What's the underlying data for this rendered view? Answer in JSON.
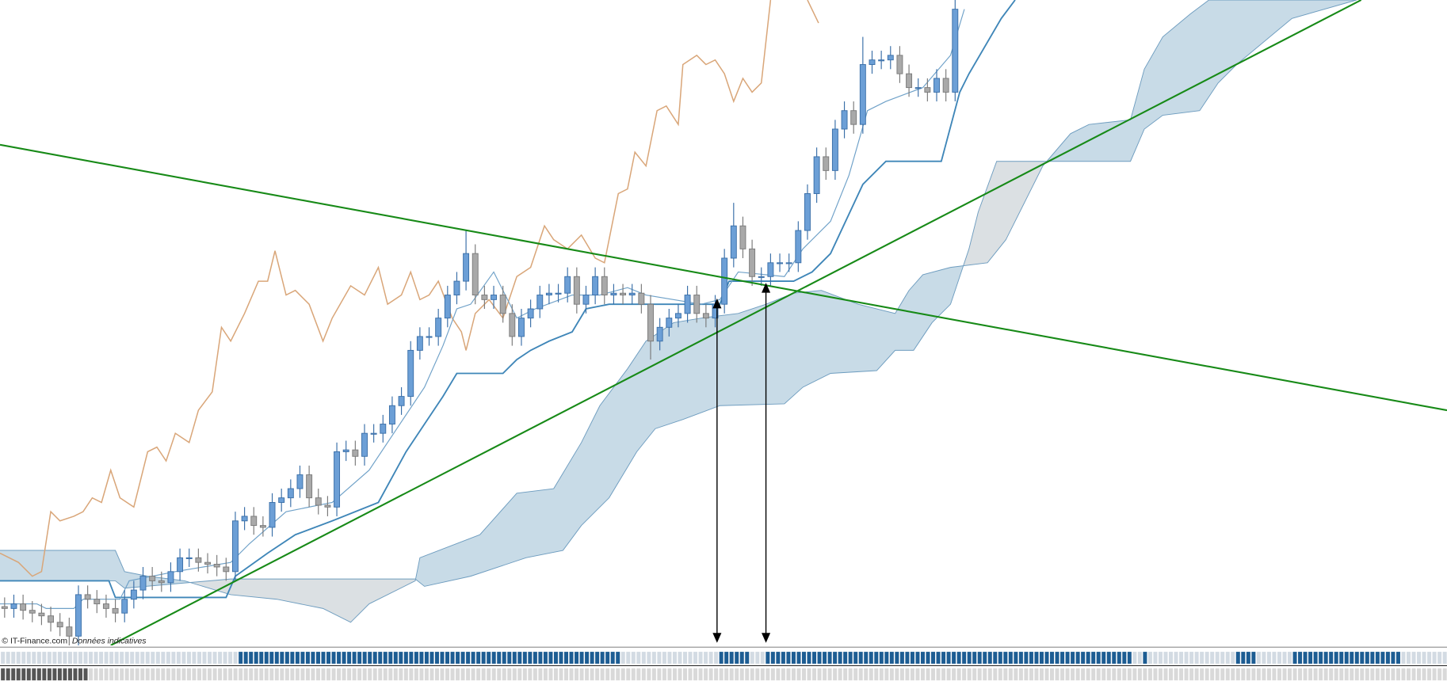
{
  "chart_data": {
    "type": "candlestick",
    "xlim": [
      0,
      1568
    ],
    "ylim": [
      0,
      700
    ],
    "up_color": "#6c9fd6",
    "up_edge": "#3a6fa8",
    "down_color": "#a9a9a9",
    "down_edge": "#7a7a7a",
    "x": [
      5,
      15,
      25,
      35,
      45,
      55,
      65,
      75,
      85,
      95,
      105,
      115,
      125,
      135,
      145,
      155,
      165,
      175,
      185,
      195,
      205,
      215,
      225,
      235,
      245,
      255,
      265,
      275,
      285,
      295,
      305,
      315,
      325,
      335,
      345,
      355,
      365,
      375,
      385,
      395,
      405,
      415,
      425,
      435,
      445,
      455,
      465,
      475,
      485,
      495,
      505,
      515,
      525,
      535,
      545,
      555,
      565,
      575,
      585,
      595,
      605,
      615,
      625,
      635,
      645,
      655,
      665,
      675,
      685,
      695,
      705,
      715,
      725,
      735,
      745,
      755,
      765,
      775,
      785,
      795,
      805,
      815,
      825,
      835,
      845,
      855,
      865,
      875,
      885,
      895,
      905,
      915,
      925,
      935,
      945,
      955,
      965,
      975,
      985,
      995,
      1005,
      1015,
      1025,
      1035
    ],
    "open": [
      42,
      40,
      45,
      38,
      35,
      32,
      25,
      20,
      10,
      55,
      50,
      45,
      40,
      35,
      50,
      60,
      75,
      70,
      68,
      80,
      95,
      95,
      90,
      88,
      85,
      80,
      135,
      140,
      130,
      128,
      155,
      160,
      170,
      185,
      160,
      152,
      150,
      210,
      212,
      205,
      230,
      230,
      240,
      260,
      270,
      320,
      335,
      335,
      355,
      380,
      395,
      425,
      380,
      375,
      380,
      360,
      335,
      355,
      365,
      380,
      382,
      382,
      400,
      370,
      380,
      400,
      380,
      382,
      380,
      382,
      370,
      330,
      345,
      355,
      360,
      380,
      360,
      355,
      370,
      420,
      455,
      430,
      400,
      400,
      415,
      415,
      415,
      450,
      490,
      530,
      515,
      560,
      580,
      565,
      630,
      635,
      635,
      640,
      620,
      605,
      605,
      600,
      615,
      600
    ],
    "high": [
      52,
      55,
      55,
      48,
      45,
      42,
      35,
      30,
      65,
      65,
      60,
      55,
      50,
      60,
      70,
      85,
      85,
      80,
      90,
      105,
      105,
      105,
      100,
      98,
      95,
      145,
      150,
      150,
      140,
      165,
      170,
      180,
      195,
      195,
      170,
      162,
      220,
      222,
      222,
      240,
      240,
      250,
      270,
      280,
      330,
      345,
      345,
      365,
      390,
      405,
      450,
      435,
      390,
      390,
      390,
      370,
      365,
      375,
      390,
      392,
      392,
      410,
      410,
      390,
      410,
      410,
      392,
      392,
      392,
      392,
      380,
      355,
      365,
      370,
      390,
      390,
      370,
      380,
      430,
      480,
      465,
      440,
      410,
      425,
      425,
      425,
      460,
      500,
      540,
      540,
      570,
      590,
      590,
      660,
      645,
      645,
      650,
      650,
      630,
      615,
      615,
      625,
      625,
      720
    ],
    "low": [
      30,
      30,
      28,
      25,
      22,
      15,
      10,
      0,
      0,
      40,
      35,
      30,
      25,
      25,
      40,
      50,
      60,
      58,
      58,
      70,
      85,
      80,
      78,
      75,
      70,
      70,
      125,
      120,
      118,
      118,
      145,
      150,
      160,
      150,
      142,
      140,
      140,
      200,
      195,
      195,
      220,
      220,
      230,
      250,
      260,
      310,
      325,
      325,
      345,
      370,
      385,
      370,
      365,
      365,
      350,
      325,
      325,
      345,
      355,
      370,
      372,
      372,
      360,
      360,
      370,
      370,
      370,
      370,
      370,
      360,
      310,
      320,
      335,
      345,
      350,
      350,
      345,
      345,
      360,
      410,
      420,
      390,
      390,
      390,
      405,
      405,
      405,
      440,
      480,
      505,
      505,
      550,
      555,
      555,
      620,
      625,
      625,
      610,
      595,
      595,
      590,
      590,
      590,
      590
    ],
    "close": [
      40,
      45,
      38,
      35,
      32,
      25,
      20,
      10,
      55,
      50,
      45,
      40,
      35,
      50,
      60,
      75,
      70,
      68,
      80,
      95,
      95,
      90,
      88,
      85,
      80,
      135,
      140,
      130,
      128,
      155,
      160,
      170,
      185,
      160,
      152,
      150,
      210,
      212,
      205,
      230,
      230,
      240,
      260,
      270,
      320,
      335,
      335,
      355,
      380,
      395,
      425,
      380,
      375,
      380,
      360,
      335,
      355,
      365,
      380,
      382,
      382,
      400,
      370,
      380,
      400,
      380,
      382,
      380,
      382,
      370,
      330,
      345,
      355,
      360,
      380,
      360,
      355,
      370,
      420,
      455,
      430,
      400,
      400,
      415,
      415,
      415,
      450,
      490,
      530,
      515,
      560,
      580,
      565,
      630,
      635,
      635,
      640,
      620,
      605,
      605,
      600,
      615,
      600,
      690
    ],
    "lines": [
      {
        "color": "#d9a679",
        "width": 1.3,
        "x": [
          0,
          20,
          35,
          45,
          55,
          65,
          80,
          90,
          100,
          110,
          120,
          130,
          145,
          160,
          170,
          180,
          190,
          205,
          215,
          230,
          240,
          250,
          265,
          280,
          290,
          298,
          310,
          320,
          335,
          350,
          360,
          380,
          395,
          410,
          420,
          435,
          445,
          455,
          465,
          475,
          490,
          500,
          505,
          515,
          530,
          545,
          560,
          575,
          590,
          600,
          615,
          630,
          645,
          655,
          670,
          680,
          688,
          700,
          712,
          722,
          735,
          740,
          755,
          765,
          775,
          785,
          795,
          805,
          815,
          825,
          835,
          855,
          875,
          887
        ],
        "values": [
          100,
          90,
          75,
          80,
          145,
          135,
          140,
          145,
          160,
          155,
          190,
          160,
          150,
          210,
          215,
          200,
          230,
          220,
          255,
          275,
          345,
          330,
          360,
          395,
          395,
          428,
          380,
          385,
          370,
          330,
          355,
          390,
          380,
          410,
          370,
          380,
          405,
          375,
          380,
          395,
          355,
          340,
          320,
          360,
          375,
          355,
          400,
          410,
          455,
          440,
          430,
          445,
          420,
          415,
          490,
          495,
          535,
          520,
          580,
          585,
          565,
          630,
          640,
          630,
          635,
          620,
          590,
          615,
          600,
          610,
          700,
          null,
          700,
          675
        ]
      },
      {
        "color": "#3f86b8",
        "width": 1.6,
        "x": [
          0,
          118,
          125,
          245,
          255,
          290,
          320,
          360,
          410,
          440,
          460,
          480,
          495,
          545,
          560,
          575,
          595,
          620,
          635,
          660,
          780,
          790,
          860,
          880,
          900,
          935,
          960,
          1020,
          1040,
          1050,
          1085,
          1100
        ],
        "values": [
          70,
          70,
          52,
          52,
          75,
          100,
          120,
          135,
          155,
          210,
          240,
          270,
          295,
          295,
          310,
          320,
          330,
          340,
          365,
          370,
          370,
          395,
          395,
          405,
          425,
          500,
          525,
          525,
          600,
          620,
          680,
          700
        ]
      },
      {
        "color": "#6fa1c8",
        "width": 1,
        "x": [
          0,
          40,
          50,
          80,
          90,
          130,
          140,
          190,
          250,
          270,
          310,
          360,
          400,
          430,
          460,
          480,
          495,
          510,
          535,
          560,
          580,
          620,
          650,
          680,
          700,
          760,
          780,
          800,
          850,
          870,
          900,
          920,
          940,
          960,
          1000,
          1030,
          1045
        ],
        "values": [
          45,
          45,
          40,
          40,
          50,
          50,
          70,
          80,
          90,
          110,
          145,
          155,
          190,
          235,
          280,
          325,
          365,
          370,
          405,
          355,
          365,
          380,
          380,
          388,
          380,
          370,
          375,
          405,
          400,
          430,
          460,
          510,
          580,
          590,
          605,
          640,
          690
        ]
      }
    ],
    "cloud": {
      "up_color": "#c8dbe7",
      "down_color": "#dbe0e3",
      "edge_color": "#6d9cbf",
      "span_a": {
        "x": [
          0,
          125,
          135,
          160,
          200,
          250,
          300,
          350,
          380,
          400,
          450,
          455,
          520,
          560,
          600,
          630,
          650,
          680,
          700,
          730,
          760,
          800,
          830,
          860,
          890,
          930,
          970,
          985,
          1000,
          1030,
          1070,
          1090,
          1110,
          1130,
          1160,
          1180,
          1225,
          1240,
          1260,
          1290,
          1310,
          1470
        ],
        "values": [
          103,
          103,
          80,
          75,
          70,
          55,
          50,
          40,
          25,
          45,
          70,
          95,
          120,
          165,
          170,
          220,
          260,
          300,
          330,
          350,
          355,
          360,
          370,
          382,
          385,
          370,
          360,
          385,
          402,
          410,
          415,
          440,
          480,
          520,
          555,
          565,
          570,
          625,
          660,
          685,
          700,
          700
        ]
      },
      "span_b": {
        "x": [
          0,
          125,
          135,
          250,
          450,
          460,
          510,
          570,
          610,
          630,
          660,
          690,
          710,
          740,
          780,
          850,
          870,
          900,
          950,
          970,
          990,
          1000,
          1010,
          1030,
          1040,
          1050,
          1060,
          1080,
          1225,
          1240,
          1260,
          1300,
          1320,
          1340,
          1400,
          1470
        ],
        "values": [
          70,
          70,
          62,
          72,
          72,
          64,
          75,
          95,
          103,
          130,
          160,
          210,
          235,
          245,
          260,
          262,
          280,
          295,
          298,
          320,
          320,
          335,
          350,
          370,
          400,
          430,
          470,
          525,
          525,
          560,
          575,
          580,
          610,
          630,
          680,
          700
        ]
      }
    },
    "trendlines": [
      {
        "color": "#178a17",
        "x": [
          0,
          1568
        ],
        "values": [
          543,
          255
        ]
      },
      {
        "color": "#178a17",
        "x": [
          120,
          1475
        ],
        "values": [
          0,
          700
        ]
      }
    ]
  },
  "footer": {
    "copyright": "© IT-Finance.com",
    "note": "Données indicatives"
  }
}
